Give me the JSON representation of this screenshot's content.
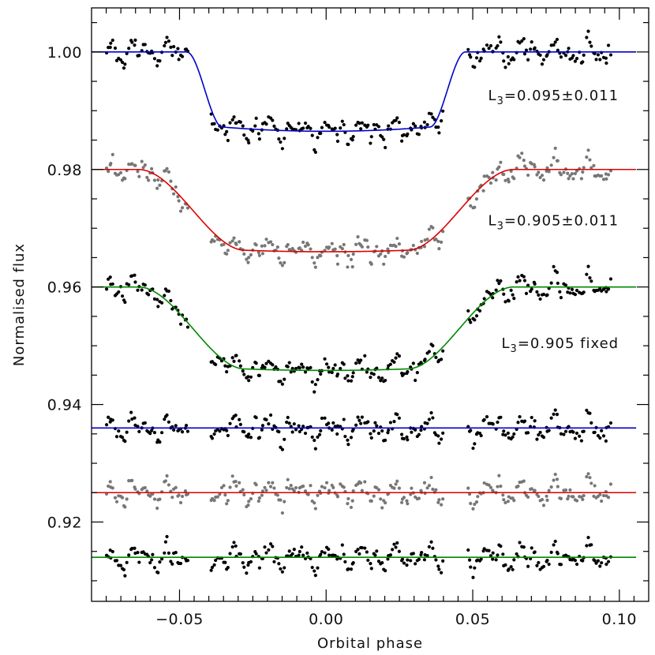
{
  "chart_data": {
    "type": "scatter",
    "title": "",
    "xlabel": "Orbital phase",
    "ylabel": "Normalised flux",
    "xlim": [
      -0.08,
      0.11
    ],
    "ylim": [
      0.9065,
      1.0075
    ],
    "x_ticks": [
      {
        "value": -0.05,
        "label": "−0.05"
      },
      {
        "value": 0.0,
        "label": "0.00"
      },
      {
        "value": 0.05,
        "label": "0.05"
      },
      {
        "value": 0.1,
        "label": "0.10"
      }
    ],
    "y_ticks": [
      {
        "value": 0.92,
        "label": "0.92"
      },
      {
        "value": 0.94,
        "label": "0.94"
      },
      {
        "value": 0.96,
        "label": "0.96"
      },
      {
        "value": 0.98,
        "label": "0.98"
      },
      {
        "value": 1.0,
        "label": "1.00"
      }
    ],
    "data_phase_range": [
      -0.075,
      0.097
    ],
    "series": [
      {
        "name": "fit1-light-curve",
        "kind": "transit",
        "baseline": 1.0,
        "depth": 0.0135,
        "half_width": 0.0415,
        "ingress": 0.006,
        "curvature": 0.001,
        "color": "#0000cc",
        "point_color": "#000000"
      },
      {
        "name": "fit2-light-curve",
        "kind": "transit",
        "baseline": 0.98,
        "depth": 0.014,
        "half_width": 0.046,
        "ingress": 0.018,
        "curvature": 0.0007,
        "color": "#dd0000",
        "point_color": "#777777"
      },
      {
        "name": "fit3-light-curve",
        "kind": "transit",
        "baseline": 0.96,
        "depth": 0.0142,
        "half_width": 0.046,
        "ingress": 0.018,
        "curvature": 0.0007,
        "color": "#008800",
        "point_color": "#000000"
      },
      {
        "name": "fit1-residuals",
        "kind": "residual",
        "baseline": 0.936,
        "color": "#0000cc",
        "point_color": "#000000"
      },
      {
        "name": "fit2-residuals",
        "kind": "residual",
        "baseline": 0.925,
        "color": "#dd0000",
        "point_color": "#777777"
      },
      {
        "name": "fit3-residuals",
        "kind": "residual",
        "baseline": 0.914,
        "color": "#008800",
        "point_color": "#000000"
      }
    ],
    "annotations": [
      {
        "name": "annot-fit1",
        "prefix": "L",
        "sub": "3",
        "text": "=0.095±0.011",
        "phase": 0.0998,
        "flux": 0.9918
      },
      {
        "name": "annot-fit2",
        "prefix": "L",
        "sub": "3",
        "text": "=0.905±0.011",
        "phase": 0.0998,
        "flux": 0.9705
      },
      {
        "name": "annot-fit3",
        "prefix": "L",
        "sub": "3",
        "text": "=0.905 fixed",
        "phase": 0.0998,
        "flux": 0.9496
      }
    ]
  }
}
